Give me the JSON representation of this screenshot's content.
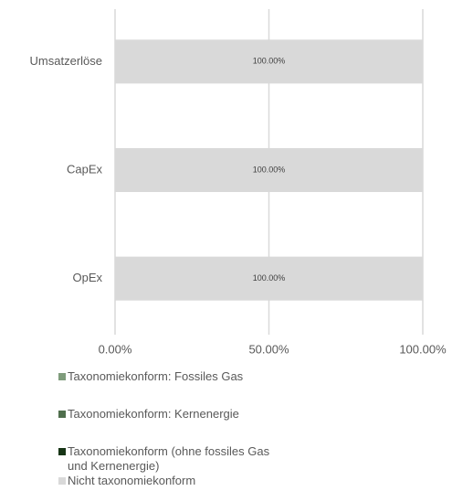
{
  "chart_data": {
    "type": "stacked-barh",
    "categories": [
      "Umsatzerlöse",
      "CapEx",
      "OpEx"
    ],
    "series": [
      {
        "name": "Taxonomiekonform: Fossiles Gas",
        "color": "#7f9c7c",
        "values": [
          0,
          0,
          0
        ]
      },
      {
        "name": "Taxonomiekonform: Kernenergie",
        "color": "#4f6e4c",
        "values": [
          0,
          0,
          0
        ]
      },
      {
        "name": "Taxonomiekonform (ohne fossiles Gas und Kernenergie)",
        "color": "#173516",
        "values": [
          0,
          0,
          0
        ]
      },
      {
        "name": "Nicht taxonomiekonform",
        "color": "#d9d9d9",
        "values": [
          100,
          100,
          100
        ],
        "value_labels": [
          "100.00%",
          "100.00%",
          "100.00%"
        ]
      }
    ],
    "xlim": [
      0,
      100
    ],
    "xticks": [
      {
        "value": 0,
        "label": "0.00%"
      },
      {
        "value": 50,
        "label": "50.00%"
      },
      {
        "value": 100,
        "label": "100.00%"
      }
    ],
    "grid": true,
    "legend": "bottom"
  }
}
